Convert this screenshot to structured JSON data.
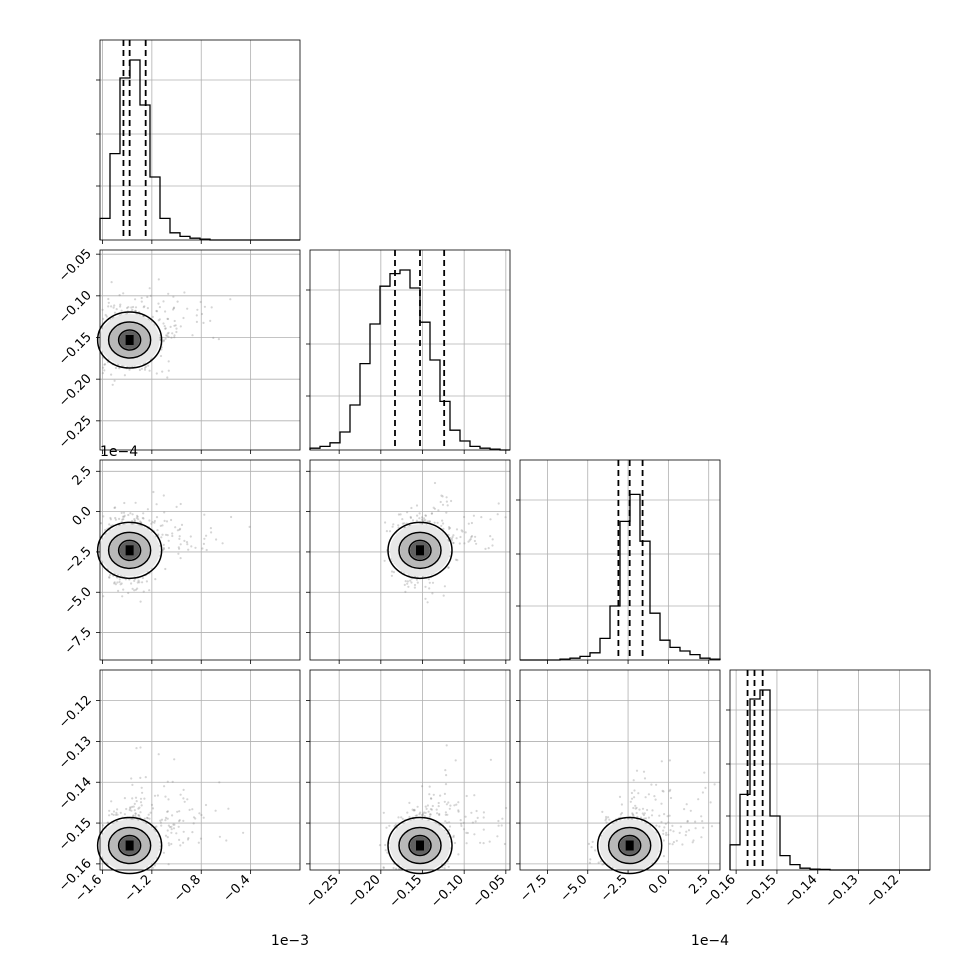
{
  "chart_data": {
    "type": "corner",
    "grid": true,
    "parameters": [
      {
        "range": [
          -1.62,
          -0.0
        ],
        "ticks": [
          -1.6,
          -1.2,
          -0.8,
          -0.4
        ],
        "tick_labels": [
          "−1.6",
          "−1.2",
          "−0.8",
          "−0.4"
        ],
        "offset_label": "1e−3",
        "quantiles": [
          -1.43,
          -1.38,
          -1.25
        ]
      },
      {
        "range": [
          -0.285,
          -0.045
        ],
        "ticks": [
          -0.25,
          -0.2,
          -0.15,
          -0.1,
          -0.05
        ],
        "tick_labels": [
          "−0.25",
          "−0.20",
          "−0.15",
          "−0.10",
          "−0.05"
        ],
        "offset_label": "",
        "quantiles": [
          -0.183,
          -0.153,
          -0.124
        ]
      },
      {
        "range": [
          -9.2,
          3.2
        ],
        "ticks": [
          -7.5,
          -5.0,
          -2.5,
          0.0,
          2.5
        ],
        "tick_labels": [
          "−7.5",
          "−5.0",
          "−2.5",
          "0.0",
          "2.5"
        ],
        "offset_label": "1e−4",
        "quantiles": [
          -3.1,
          -2.4,
          -1.6
        ]
      },
      {
        "range": [
          -0.1615,
          -0.1125
        ],
        "ticks": [
          -0.16,
          -0.15,
          -0.14,
          -0.13,
          -0.12
        ],
        "tick_labels": [
          "−0.16",
          "−0.15",
          "−0.14",
          "−0.13",
          "−0.12"
        ],
        "offset_label": "",
        "quantiles": [
          -0.1572,
          -0.1555,
          -0.1535
        ]
      }
    ],
    "histograms": [
      [
        0.12,
        0.48,
        0.9,
        1.0,
        0.75,
        0.35,
        0.12,
        0.04,
        0.02,
        0.01,
        0.005,
        0.0,
        0.0,
        0.0,
        0.0,
        0.0,
        0.0,
        0.0,
        0.0,
        0.0
      ],
      [
        0.01,
        0.02,
        0.04,
        0.1,
        0.25,
        0.48,
        0.7,
        0.91,
        0.98,
        1.0,
        0.9,
        0.71,
        0.5,
        0.27,
        0.11,
        0.05,
        0.02,
        0.01,
        0.005,
        0.0
      ],
      [
        0.0,
        0.0,
        0.0,
        0.0,
        0.005,
        0.01,
        0.02,
        0.04,
        0.12,
        0.3,
        0.77,
        0.92,
        0.66,
        0.26,
        0.11,
        0.07,
        0.05,
        0.03,
        0.01,
        0.005
      ],
      [
        0.14,
        0.42,
        0.95,
        1.0,
        0.3,
        0.08,
        0.03,
        0.01,
        0.005,
        0.003,
        0.0,
        0.0,
        0.0,
        0.0,
        0.0,
        0.0,
        0.0,
        0.0,
        0.0,
        0.0
      ]
    ],
    "offset_labels": [
      {
        "panel": [
          1,
          0
        ],
        "text": "1e−4"
      },
      {
        "panel": [
          3,
          0
        ],
        "text": "1e−3"
      },
      {
        "panel": [
          3,
          2
        ],
        "text": "1e−4"
      }
    ]
  }
}
